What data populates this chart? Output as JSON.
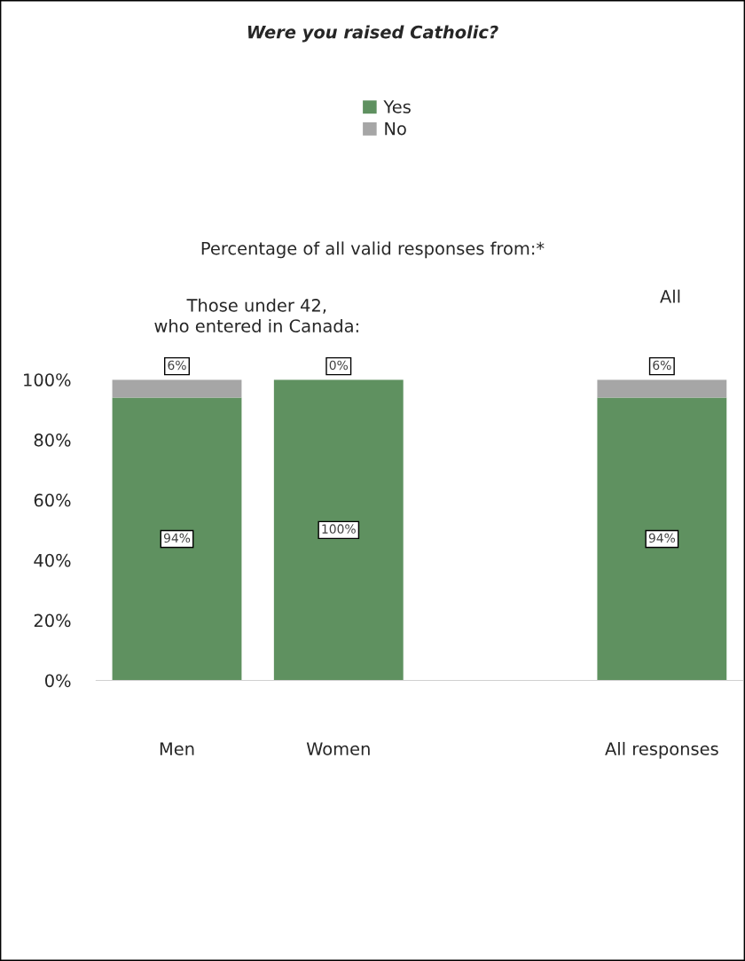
{
  "chart_data": {
    "type": "bar",
    "title": "Were you raised Catholic?",
    "annotations": [
      "Percentage of all valid responses from:*",
      "Those under 42, who entered in Canada:",
      "All"
    ],
    "categories": [
      "Men",
      "Women",
      null,
      "All responses"
    ],
    "stacked": true,
    "series": [
      {
        "name": "Yes",
        "color": "#5f9160",
        "values": [
          94,
          100,
          null,
          94
        ],
        "value_labels": [
          "94%",
          "100%",
          null,
          "94%"
        ]
      },
      {
        "name": "No",
        "color": "#a6a6a6",
        "values": [
          6,
          0,
          null,
          6
        ],
        "value_labels": [
          "6%",
          "0%",
          null,
          "6%"
        ]
      }
    ],
    "ylim": [
      0,
      100
    ],
    "yticks": [
      {
        "value": 0,
        "label": "0%"
      },
      {
        "value": 20,
        "label": "20%"
      },
      {
        "value": 40,
        "label": "40%"
      },
      {
        "value": 60,
        "label": "60%"
      },
      {
        "value": 80,
        "label": "80%"
      },
      {
        "value": 100,
        "label": "100%"
      }
    ],
    "grid": false,
    "legend": "top"
  }
}
